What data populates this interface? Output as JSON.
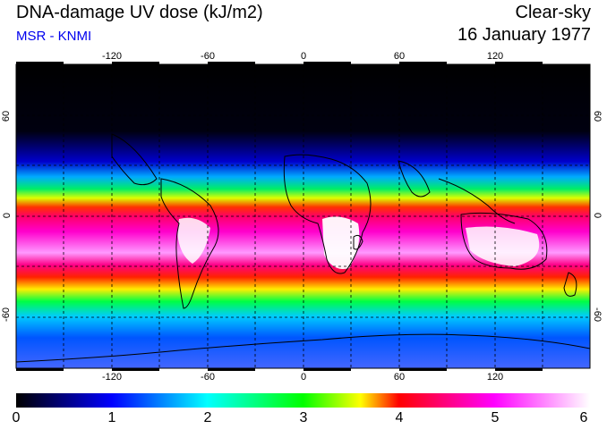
{
  "header": {
    "title": "DNA-damage UV dose (kJ/m2)",
    "subtitle": "MSR - KNMI",
    "subtitle_color": "#0000ee",
    "condition": "Clear-sky",
    "date": "16 January 1977"
  },
  "map": {
    "lon_ticks": [
      "-120",
      "-60",
      "0",
      "60",
      "120"
    ],
    "lat_ticks_left": [
      "60",
      "0",
      "-60"
    ],
    "lat_ticks_right": [
      "60",
      "0",
      "-60"
    ],
    "lon_range": [
      -180,
      180
    ],
    "lat_range": [
      -90,
      90
    ],
    "grid_step_deg": 30
  },
  "colorbar": {
    "ticks": [
      "0",
      "1",
      "2",
      "3",
      "4",
      "5",
      "6"
    ],
    "range": [
      0,
      6
    ],
    "colors": [
      "#000000",
      "#0000ff",
      "#00ffff",
      "#00ff00",
      "#ffff00",
      "#ff0000",
      "#ff00ff",
      "#ffffff"
    ]
  }
}
